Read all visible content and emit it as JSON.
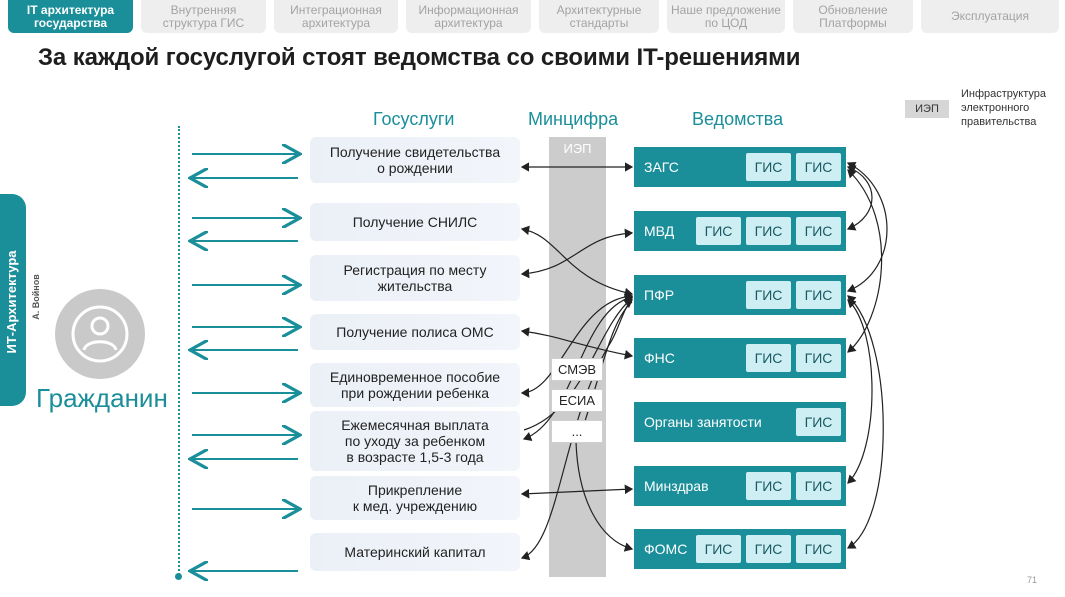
{
  "tabs": [
    {
      "label": "IT архитектура государства",
      "active": true
    },
    {
      "label": "Внутренняя структура ГИС",
      "active": false
    },
    {
      "label": "Интеграционная архитектура",
      "active": false
    },
    {
      "label": "Информационная архитектура",
      "active": false
    },
    {
      "label": "Архитектурные стандарты",
      "active": false
    },
    {
      "label": "Наше предложение по ЦОД",
      "active": false
    },
    {
      "label": "Обновление Платформы",
      "active": false
    },
    {
      "label": "Эксплуатация",
      "active": false
    }
  ],
  "title": "За каждой госуслугой стоят ведомства со своими IT-решениями",
  "legend": {
    "tag": "ИЭП",
    "lines": [
      "Инфраструктура",
      "электронного",
      "правительства"
    ]
  },
  "side": {
    "ribbon_label": "ИТ-Архитектура",
    "author": "А. Войнов",
    "citizen_label": "Гражданин"
  },
  "columns": {
    "services": "Госуслуги",
    "mincifra": "Минцифра",
    "agencies": "Ведомства"
  },
  "services": [
    {
      "lines": [
        "Получение свидетельства",
        "о рождении"
      ]
    },
    {
      "lines": [
        "Получение СНИЛС"
      ]
    },
    {
      "lines": [
        "Регистрация по месту",
        "жительства"
      ]
    },
    {
      "lines": [
        "Получение полиса ОМС"
      ]
    },
    {
      "lines": [
        "Единовременное пособие",
        "при рождении ребенка"
      ]
    },
    {
      "lines": [
        "Ежемесячная выплата",
        "по уходу за ребенком",
        "в возрасте 1,5-3 года"
      ]
    },
    {
      "lines": [
        "Прикрепление",
        "к мед. учреждению"
      ]
    },
    {
      "lines": [
        "Материнский капитал"
      ]
    }
  ],
  "mincifra": {
    "header": "ИЭП",
    "boxes": [
      "СМЭВ",
      "ЕСИА",
      "..."
    ]
  },
  "agencies": [
    {
      "name": "ЗАГС",
      "gis": [
        "ГИС",
        "ГИС"
      ]
    },
    {
      "name": "МВД",
      "gis": [
        "ГИС",
        "ГИС",
        "ГИС"
      ]
    },
    {
      "name": "ПФР",
      "gis": [
        "ГИС",
        "ГИС"
      ]
    },
    {
      "name": "ФНС",
      "gis": [
        "ГИС",
        "ГИС"
      ]
    },
    {
      "name": "Органы занятости",
      "gis": [
        "ГИС"
      ]
    },
    {
      "name": "Минздрав",
      "gis": [
        "ГИС",
        "ГИС"
      ]
    },
    {
      "name": "ФОМС",
      "gis": [
        "ГИС",
        "ГИС",
        "ГИС"
      ]
    }
  ],
  "page_number": "71",
  "colors": {
    "accent": "#1a8f9a",
    "gis_fill": "#cdeef2",
    "service_fill": "#ebf0f7",
    "mincifra_fill": "#cccccc"
  }
}
